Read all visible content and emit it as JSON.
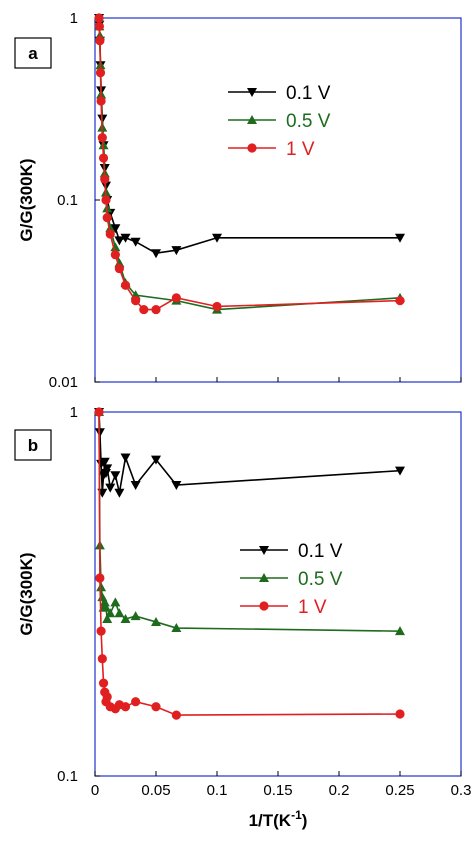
{
  "chart_data": [
    {
      "type": "line",
      "panel_label": "a",
      "xlabel": "1/T(K⁻¹)",
      "ylabel": "G/G(300K)",
      "ylim": [
        0.01,
        1
      ],
      "yscale": "log",
      "yticks": [
        {
          "v": 0.01,
          "label": "0.01"
        },
        {
          "v": 0.1,
          "label": "0.1"
        },
        {
          "v": 1,
          "label": "1"
        }
      ],
      "legend_position": "upper-right",
      "series": [
        {
          "name": "0.1 V",
          "color": "#000000",
          "marker": "triangle-down",
          "x": [
            0.0033,
            0.0036,
            0.004,
            0.0045,
            0.005,
            0.006,
            0.007,
            0.008,
            0.009,
            0.01,
            0.0125,
            0.0167,
            0.02,
            0.025,
            0.0333,
            0.05,
            0.0667,
            0.1,
            0.25
          ],
          "y": [
            1.0,
            0.92,
            0.75,
            0.55,
            0.4,
            0.28,
            0.2,
            0.15,
            0.12,
            0.1,
            0.085,
            0.07,
            0.06,
            0.062,
            0.059,
            0.051,
            0.053,
            0.062,
            0.062
          ]
        },
        {
          "name": "0.5 V",
          "color": "#1e6b1e",
          "marker": "triangle-up",
          "x": [
            0.0033,
            0.0036,
            0.004,
            0.0045,
            0.005,
            0.006,
            0.007,
            0.008,
            0.009,
            0.01,
            0.0125,
            0.0167,
            0.02,
            0.025,
            0.0333,
            0.0667,
            0.1,
            0.25
          ],
          "y": [
            1.0,
            0.9,
            0.8,
            0.55,
            0.38,
            0.25,
            0.2,
            0.14,
            0.11,
            0.09,
            0.07,
            0.055,
            0.045,
            0.035,
            0.03,
            0.028,
            0.025,
            0.029
          ]
        },
        {
          "name": "1 V",
          "color": "#e02020",
          "marker": "circle",
          "x": [
            0.0033,
            0.0036,
            0.004,
            0.0045,
            0.005,
            0.006,
            0.007,
            0.008,
            0.009,
            0.01,
            0.0125,
            0.0167,
            0.02,
            0.025,
            0.0333,
            0.04,
            0.05,
            0.0667,
            0.1,
            0.25
          ],
          "y": [
            1.0,
            0.9,
            0.75,
            0.5,
            0.35,
            0.22,
            0.17,
            0.13,
            0.1,
            0.08,
            0.065,
            0.05,
            0.042,
            0.034,
            0.028,
            0.025,
            0.025,
            0.029,
            0.026,
            0.028
          ]
        }
      ]
    },
    {
      "type": "line",
      "panel_label": "b",
      "xlabel": "1/T(K⁻¹)",
      "ylabel": "G/G(300K)",
      "xlim": [
        0,
        0.3
      ],
      "xticks": [
        {
          "v": 0,
          "label": "0"
        },
        {
          "v": 0.05,
          "label": "0.05"
        },
        {
          "v": 0.1,
          "label": "0.1"
        },
        {
          "v": 0.15,
          "label": "0.15"
        },
        {
          "v": 0.2,
          "label": "0.2"
        },
        {
          "v": 0.25,
          "label": "0.25"
        },
        {
          "v": 0.3,
          "label": "0.3"
        }
      ],
      "ylim": [
        0.1,
        1
      ],
      "yscale": "log",
      "yticks": [
        {
          "v": 0.1,
          "label": "0.1"
        },
        {
          "v": 1,
          "label": "1"
        }
      ],
      "legend_position": "right",
      "series": [
        {
          "name": "0.1 V",
          "color": "#000000",
          "marker": "triangle-down",
          "x": [
            0.0033,
            0.004,
            0.005,
            0.006,
            0.007,
            0.008,
            0.009,
            0.01,
            0.0125,
            0.0167,
            0.02,
            0.025,
            0.0333,
            0.05,
            0.0667,
            0.25
          ],
          "y": [
            1.0,
            0.88,
            0.72,
            0.6,
            0.67,
            0.73,
            0.68,
            0.7,
            0.62,
            0.67,
            0.6,
            0.75,
            0.63,
            0.74,
            0.63,
            0.69
          ]
        },
        {
          "name": "0.5 V",
          "color": "#1e6b1e",
          "marker": "triangle-up",
          "x": [
            0.0033,
            0.004,
            0.005,
            0.006,
            0.007,
            0.008,
            0.009,
            0.01,
            0.0125,
            0.0167,
            0.02,
            0.025,
            0.0333,
            0.05,
            0.0667,
            0.25
          ],
          "y": [
            1.0,
            0.43,
            0.33,
            0.31,
            0.29,
            0.3,
            0.29,
            0.27,
            0.28,
            0.3,
            0.28,
            0.27,
            0.275,
            0.265,
            0.255,
            0.25
          ]
        },
        {
          "name": "1 V",
          "color": "#e02020",
          "marker": "circle",
          "x": [
            0.0033,
            0.004,
            0.005,
            0.006,
            0.007,
            0.008,
            0.009,
            0.01,
            0.0125,
            0.0167,
            0.02,
            0.025,
            0.0333,
            0.05,
            0.0667,
            0.25
          ],
          "y": [
            1.0,
            0.35,
            0.25,
            0.21,
            0.18,
            0.17,
            0.16,
            0.165,
            0.155,
            0.153,
            0.157,
            0.155,
            0.16,
            0.155,
            0.147,
            0.148
          ]
        }
      ]
    }
  ]
}
